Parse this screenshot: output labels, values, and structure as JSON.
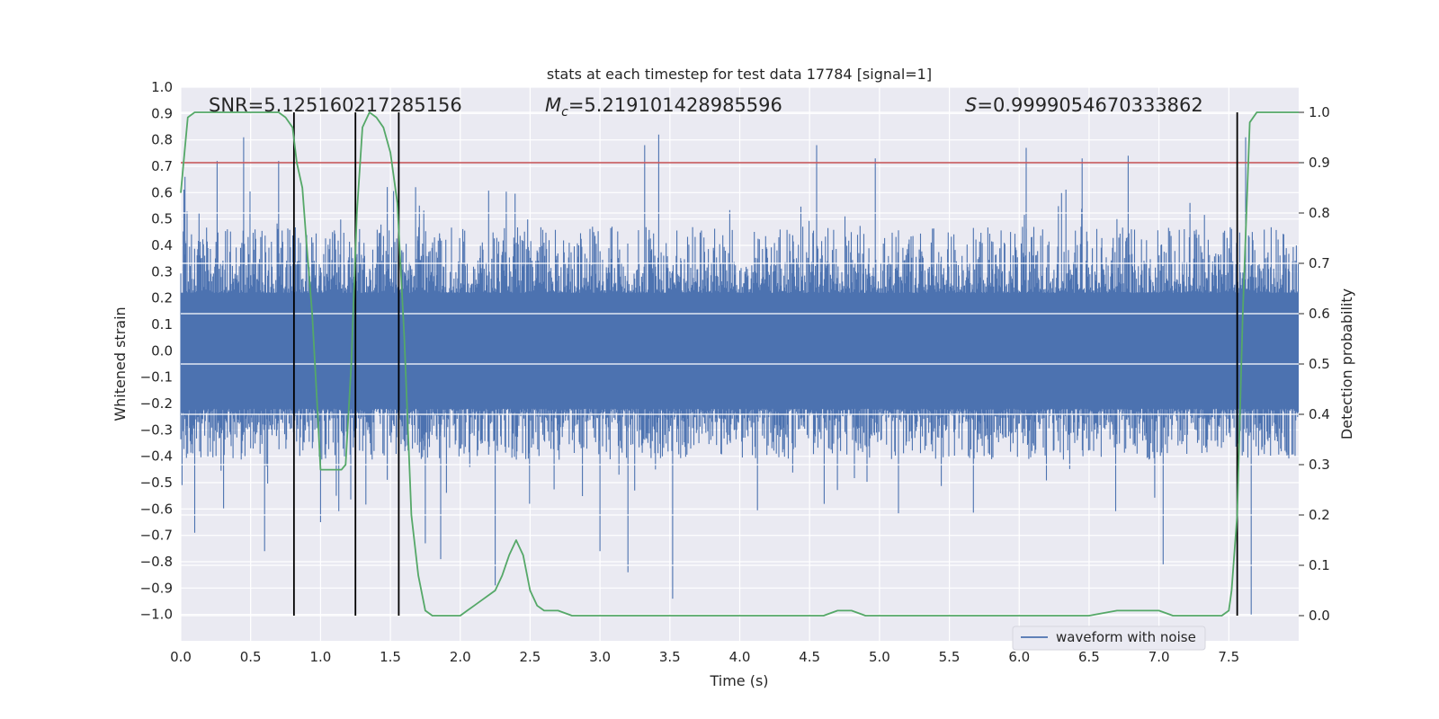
{
  "chart_data": {
    "type": "line",
    "title": "stats at each timestep for test data 17784 [signal=1]",
    "xlabel": "Time (s)",
    "ylabel": "Whitened strain",
    "ylabel_right": "Detection probability",
    "xlim": [
      0.0,
      8.0
    ],
    "ylim": [
      -1.1,
      1.0
    ],
    "ylim_right": [
      -0.05,
      1.05
    ],
    "xticks": [
      "0.0",
      "0.5",
      "1.0",
      "1.5",
      "2.0",
      "2.5",
      "3.0",
      "3.5",
      "4.0",
      "4.5",
      "5.0",
      "5.5",
      "6.0",
      "6.5",
      "7.0",
      "7.5"
    ],
    "yticks": [
      "1.0",
      "0.9",
      "0.8",
      "0.7",
      "0.6",
      "0.5",
      "0.4",
      "0.3",
      "0.2",
      "0.1",
      "0.0",
      "−0.1",
      "−0.2",
      "−0.3",
      "−0.4",
      "−0.5",
      "−0.6",
      "−0.7",
      "−0.8",
      "−0.9",
      "−1.0"
    ],
    "yticks_right": [
      "1.0",
      "0.9",
      "0.8",
      "0.7",
      "0.6",
      "0.5",
      "0.4",
      "0.3",
      "0.2",
      "0.1",
      "0.0"
    ],
    "annotations": {
      "snr": "SNR=5.125160217285156",
      "mc_symbol": "M",
      "mc_sub": "c",
      "mc_value": "=5.219101428985596",
      "s_symbol": "S",
      "s_value": "=0.9999054670333862"
    },
    "legend": {
      "label": "waveform with noise",
      "placement": "lower-right"
    },
    "threshold": {
      "value": 0.9,
      "axis": "right",
      "color": "#c44e52"
    },
    "event_lines_x": [
      0.81,
      1.25,
      1.56,
      7.56
    ],
    "waveform": {
      "name": "waveform with noise",
      "color": "#4c72b0",
      "x_range": [
        0.0,
        8.0
      ],
      "envelope_typical": [
        -0.42,
        0.48
      ],
      "spikes": [
        [
          0.03,
          0.66
        ],
        [
          0.1,
          -0.69
        ],
        [
          0.26,
          0.72
        ],
        [
          0.45,
          0.81
        ],
        [
          0.6,
          -0.76
        ],
        [
          0.7,
          0.72
        ],
        [
          1.0,
          -0.65
        ],
        [
          1.56,
          -0.65
        ],
        [
          1.75,
          -0.73
        ],
        [
          1.86,
          -0.79
        ],
        [
          2.25,
          -0.89
        ],
        [
          3.0,
          -0.76
        ],
        [
          3.2,
          -0.84
        ],
        [
          3.32,
          0.78
        ],
        [
          3.42,
          0.82
        ],
        [
          3.52,
          -0.94
        ],
        [
          4.55,
          0.78
        ],
        [
          4.97,
          0.73
        ],
        [
          6.05,
          0.77
        ],
        [
          6.45,
          0.73
        ],
        [
          6.78,
          0.74
        ],
        [
          7.03,
          -0.81
        ],
        [
          7.62,
          0.81
        ],
        [
          7.66,
          -1.0
        ]
      ]
    },
    "series": [
      {
        "name": "",
        "axis": "right",
        "color": "#55a868",
        "x": [
          0.0,
          0.05,
          0.1,
          0.15,
          0.2,
          0.3,
          0.4,
          0.5,
          0.6,
          0.7,
          0.75,
          0.8,
          0.83,
          0.87,
          0.9,
          0.94,
          0.98,
          1.0,
          1.05,
          1.1,
          1.15,
          1.18,
          1.22,
          1.26,
          1.3,
          1.35,
          1.4,
          1.45,
          1.5,
          1.55,
          1.6,
          1.65,
          1.7,
          1.75,
          1.8,
          1.9,
          2.0,
          2.05,
          2.1,
          2.15,
          2.2,
          2.25,
          2.3,
          2.35,
          2.4,
          2.45,
          2.5,
          2.55,
          2.6,
          2.7,
          2.8,
          2.9,
          3.0,
          3.2,
          3.5,
          4.0,
          4.5,
          4.6,
          4.7,
          4.75,
          4.8,
          4.9,
          5.0,
          5.2,
          5.5,
          6.0,
          6.5,
          6.7,
          6.8,
          6.9,
          7.0,
          7.1,
          7.2,
          7.3,
          7.4,
          7.45,
          7.5,
          7.52,
          7.56,
          7.6,
          7.65,
          7.7,
          7.75,
          7.8,
          7.9,
          8.0
        ],
        "values": [
          0.84,
          0.99,
          1.0,
          1.0,
          1.0,
          1.0,
          1.0,
          1.0,
          1.0,
          1.0,
          0.99,
          0.97,
          0.9,
          0.85,
          0.74,
          0.6,
          0.4,
          0.29,
          0.29,
          0.29,
          0.29,
          0.3,
          0.5,
          0.8,
          0.97,
          1.0,
          0.99,
          0.97,
          0.92,
          0.82,
          0.55,
          0.2,
          0.08,
          0.01,
          0.0,
          0.0,
          0.0,
          0.01,
          0.02,
          0.03,
          0.04,
          0.05,
          0.08,
          0.12,
          0.15,
          0.12,
          0.05,
          0.02,
          0.01,
          0.01,
          0.0,
          0.0,
          0.0,
          0.0,
          0.0,
          0.0,
          0.0,
          0.0,
          0.01,
          0.01,
          0.01,
          0.0,
          0.0,
          0.0,
          0.0,
          0.0,
          0.0,
          0.01,
          0.01,
          0.01,
          0.01,
          0.0,
          0.0,
          0.0,
          0.0,
          0.0,
          0.01,
          0.05,
          0.2,
          0.6,
          0.98,
          1.0,
          1.0,
          1.0,
          1.0,
          1.0
        ]
      }
    ],
    "grid": true
  }
}
